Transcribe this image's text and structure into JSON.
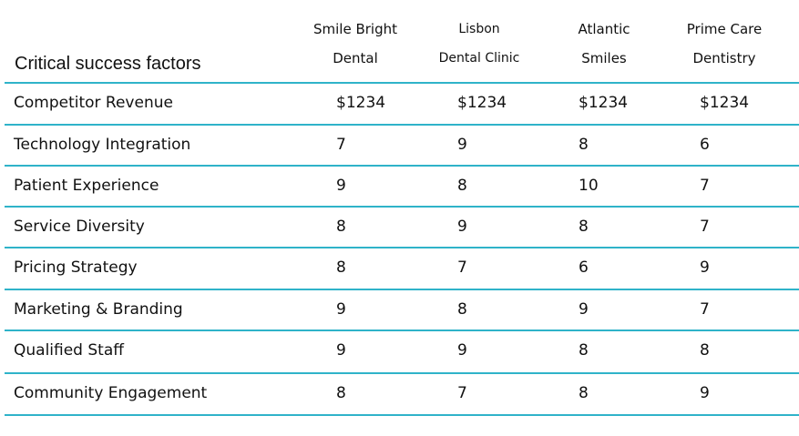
{
  "table": {
    "title": "Critical success factors",
    "columns": [
      {
        "line1": "Smile Bright",
        "line2": "Dental"
      },
      {
        "line1": "Lisbon",
        "line2": "Dental Clinic"
      },
      {
        "line1": "Atlantic",
        "line2": "Smiles"
      },
      {
        "line1": "Prime Care",
        "line2": "Dentistry"
      }
    ],
    "rows": [
      {
        "label": "Competitor Revenue",
        "values": [
          "$1234",
          "$1234",
          "$1234",
          "$1234"
        ]
      },
      {
        "label": "Technology Integration",
        "values": [
          "7",
          "9",
          "8",
          "6"
        ]
      },
      {
        "label": "Patient Experience",
        "values": [
          "9",
          "8",
          "10",
          "7"
        ]
      },
      {
        "label": "Service Diversity",
        "values": [
          "8",
          "9",
          "8",
          "7"
        ]
      },
      {
        "label": "Pricing Strategy",
        "values": [
          "8",
          "7",
          "6",
          "9"
        ]
      },
      {
        "label": "Marketing & Branding",
        "values": [
          "9",
          "8",
          "9",
          "7"
        ]
      },
      {
        "label": "Qualified Staff",
        "values": [
          "9",
          "9",
          "8",
          "8"
        ]
      },
      {
        "label": "Community Engagement",
        "values": [
          "8",
          "7",
          "8",
          "9"
        ]
      }
    ],
    "rule_color": "#2fb3c9"
  }
}
